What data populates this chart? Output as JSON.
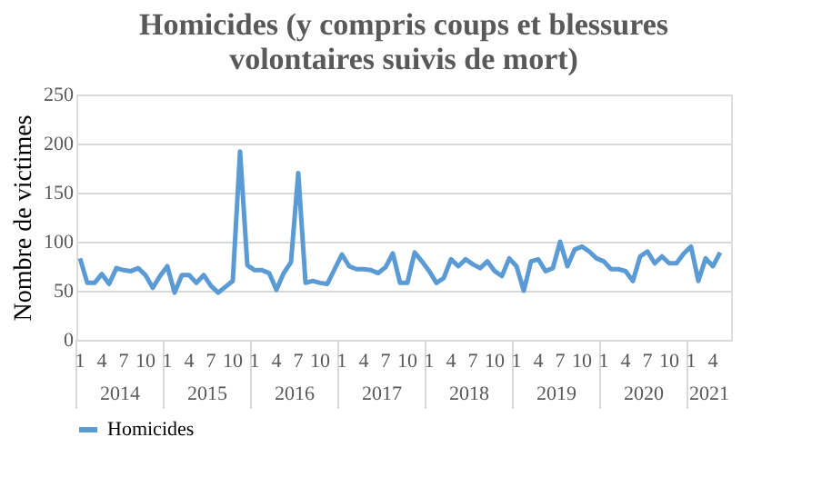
{
  "chart_data": {
    "type": "line",
    "title": [
      "Homicides (y compris coups et blessures",
      "volontaires suivis  de mort)"
    ],
    "ylabel": "Nombre de victimes",
    "categories": [
      "1",
      null,
      null,
      "4",
      null,
      null,
      "7",
      null,
      null,
      "10",
      null,
      null,
      "1",
      null,
      null,
      "4",
      null,
      null,
      "7",
      null,
      null,
      "10",
      null,
      null,
      "1",
      null,
      null,
      "4",
      null,
      null,
      "7",
      null,
      null,
      "10",
      null,
      null,
      "1",
      null,
      null,
      "4",
      null,
      null,
      "7",
      null,
      null,
      "10",
      null,
      null,
      "1",
      null,
      null,
      "4",
      null,
      null,
      "7",
      null,
      null,
      "10",
      null,
      null,
      "1",
      null,
      null,
      "4",
      null,
      null,
      "7",
      null,
      null,
      "10",
      null,
      null,
      "1",
      null,
      null,
      "4",
      null,
      null,
      "7",
      null,
      null,
      "10",
      null,
      null,
      "1",
      null,
      null,
      "4",
      null,
      null
    ],
    "series": [
      {
        "name": "Homicides",
        "color": "#5b9bd5",
        "values": [
          83,
          58,
          58,
          67,
          57,
          73,
          71,
          70,
          73,
          66,
          53,
          65,
          75,
          48,
          66,
          66,
          58,
          66,
          55,
          48,
          54,
          60,
          192,
          76,
          71,
          71,
          68,
          51,
          68,
          79,
          170,
          58,
          60,
          58,
          57,
          72,
          87,
          75,
          72,
          72,
          71,
          68,
          74,
          88,
          58,
          58,
          89,
          80,
          70,
          58,
          63,
          82,
          75,
          82,
          77,
          73,
          80,
          70,
          65,
          83,
          75,
          50,
          80,
          82,
          70,
          73,
          100,
          75,
          92,
          95,
          90,
          83,
          80,
          72,
          72,
          70,
          60,
          85,
          90,
          78,
          85,
          78,
          78,
          88,
          95,
          60,
          83,
          75,
          89,
          null
        ]
      }
    ],
    "annotations": [
      "2014",
      "2015",
      "2016",
      "2017",
      "2018",
      "2019",
      "2020",
      "2021"
    ],
    "ylim": [
      0,
      250
    ],
    "yticks": [
      0,
      50,
      100,
      150,
      200,
      250
    ],
    "grid": "y",
    "legend": "bottom",
    "marker": "none",
    "line_style": "solid"
  }
}
